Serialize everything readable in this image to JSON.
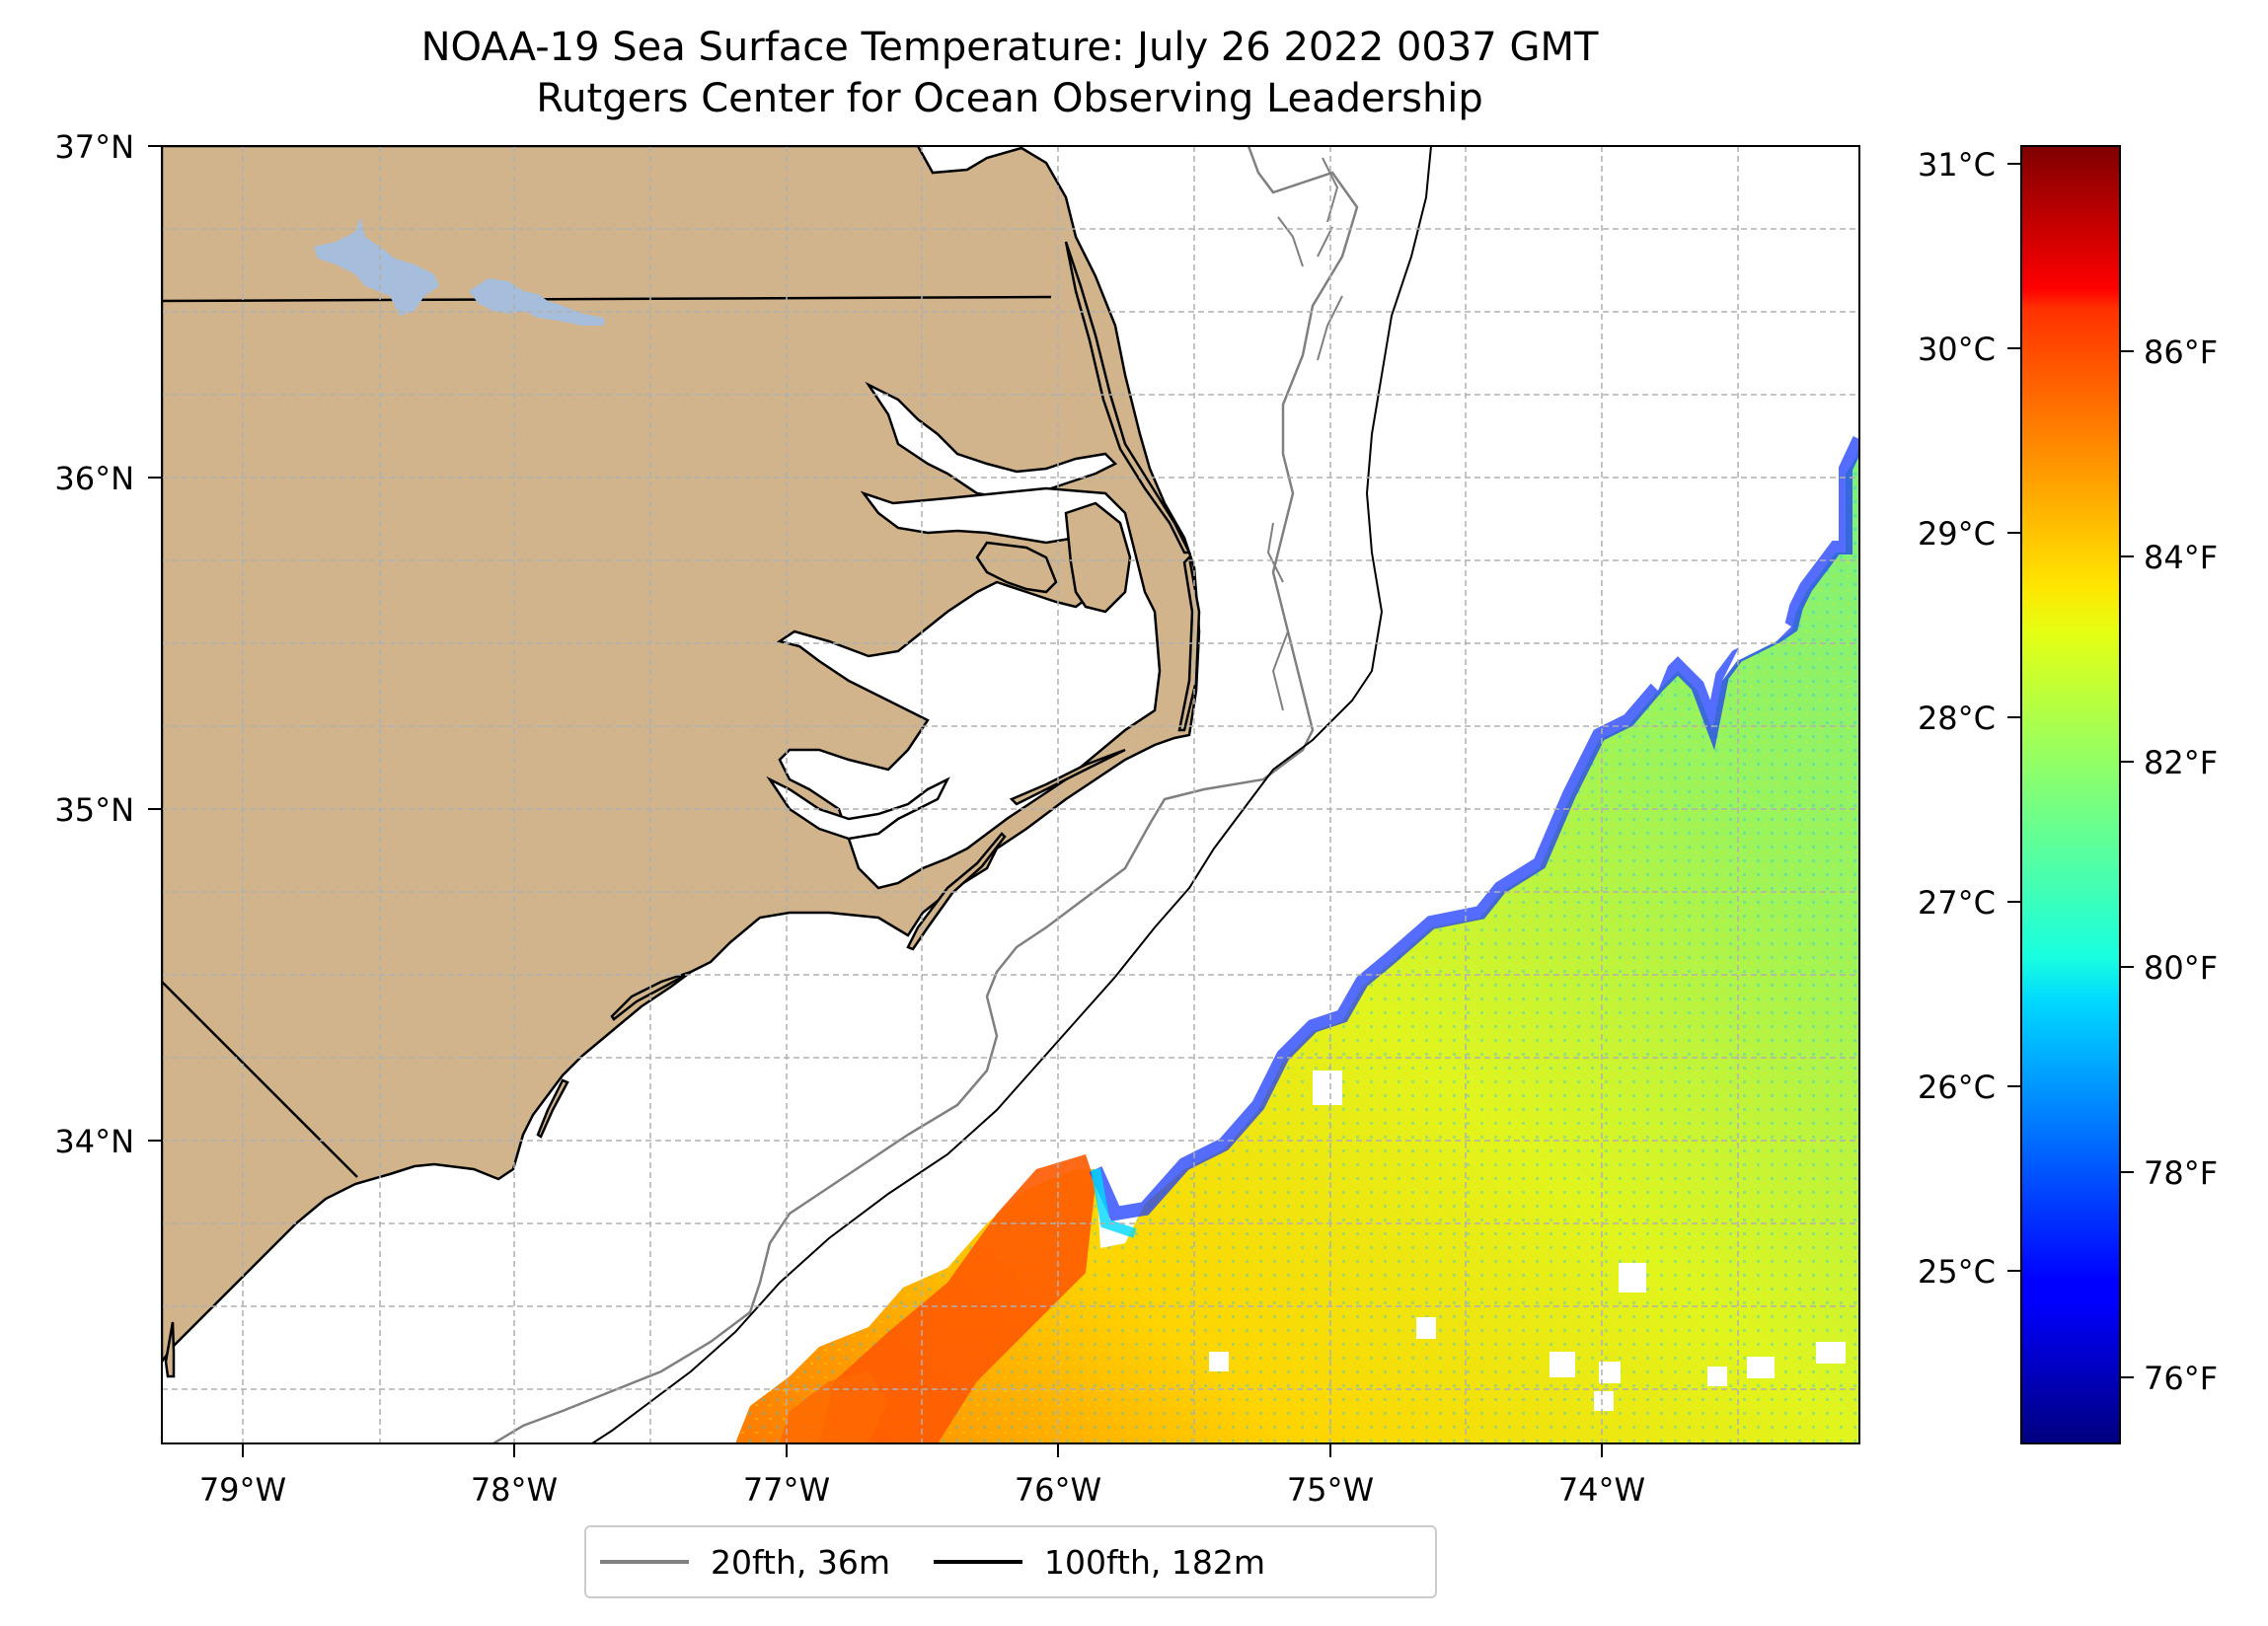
{
  "title": {
    "line1": "NOAA-19 Sea Surface Temperature: July 26 2022 0037 GMT",
    "line2": "Rutgers Center for Ocean Observing Leadership"
  },
  "map": {
    "lon_range": [
      -79.3,
      -73.05
    ],
    "lat_range": [
      33.1,
      37.0
    ],
    "lon_ticks": [
      "79°W",
      "78°W",
      "77°W",
      "76°W",
      "75°W",
      "74°W"
    ],
    "lat_ticks": [
      "37°N",
      "36°N",
      "35°N",
      "34°N"
    ],
    "gridlines": true,
    "land_color": "#d2b48c",
    "lake_color": "#a6bddb"
  },
  "legend": {
    "placement": "bottom-center",
    "entries": [
      {
        "label": "20fth, 36m",
        "color": "#808080"
      },
      {
        "label": "100fth, 182m",
        "color": "#000000"
      }
    ]
  },
  "colorbar": {
    "colormap": "jet",
    "celsius_range": [
      24.2,
      31.1
    ],
    "celsius_ticks": [
      "31°C",
      "30°C",
      "29°C",
      "28°C",
      "27°C",
      "26°C",
      "25°C"
    ],
    "fahrenheit_ticks": [
      "86°F",
      "84°F",
      "82°F",
      "80°F",
      "78°F",
      "76°F"
    ]
  }
}
